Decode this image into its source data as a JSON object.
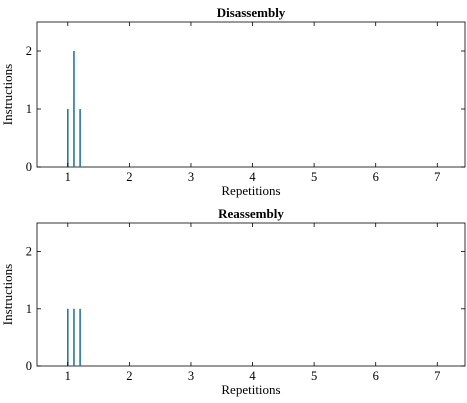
{
  "chart_data": [
    {
      "type": "bar",
      "title": "Disassembly",
      "xlabel": "Repetitions",
      "ylabel": "Instructions",
      "xlim": [
        0.5,
        7.45
      ],
      "ylim": [
        0,
        2.5
      ],
      "xticks": [
        1,
        2,
        3,
        4,
        5,
        6,
        7
      ],
      "yticks": [
        0,
        1,
        2
      ],
      "grid": false,
      "color": "#1f77b4",
      "x": [
        1.0,
        1.1,
        1.2
      ],
      "values": [
        1,
        2,
        1
      ]
    },
    {
      "type": "bar",
      "title": "Reassembly",
      "xlabel": "Repetitions",
      "ylabel": "Instructions",
      "xlim": [
        0.5,
        7.45
      ],
      "ylim": [
        0,
        2.5
      ],
      "xticks": [
        1,
        2,
        3,
        4,
        5,
        6,
        7
      ],
      "yticks": [
        0,
        1,
        2
      ],
      "grid": false,
      "color": "#1f77b4",
      "x": [
        1.0,
        1.1,
        1.2
      ],
      "values": [
        1,
        1,
        1
      ]
    }
  ]
}
